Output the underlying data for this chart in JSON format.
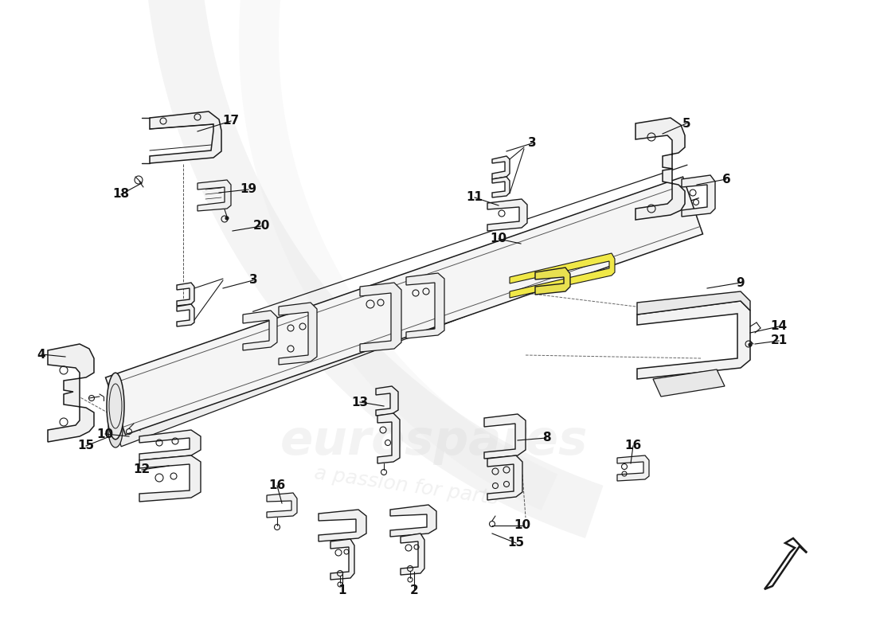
{
  "bg": "#ffffff",
  "lc": "#1a1a1a",
  "lw": 1.0,
  "watermark_color": "#c8c8c8",
  "sweep_color": "#d8d8d8",
  "yellow": "#e8e050",
  "labels": [
    [
      430,
      718,
      430,
      742,
      "1"
    ],
    [
      520,
      718,
      520,
      742,
      "2"
    ],
    [
      280,
      362,
      318,
      352,
      "3"
    ],
    [
      636,
      190,
      668,
      180,
      "3"
    ],
    [
      82,
      448,
      52,
      445,
      "4"
    ],
    [
      832,
      168,
      862,
      155,
      "5"
    ],
    [
      875,
      232,
      912,
      225,
      "6"
    ],
    [
      650,
      553,
      686,
      550,
      "8"
    ],
    [
      888,
      362,
      930,
      355,
      "9"
    ],
    [
      162,
      548,
      132,
      545,
      "10"
    ],
    [
      654,
      306,
      626,
      300,
      "10"
    ],
    [
      618,
      660,
      656,
      660,
      "10"
    ],
    [
      626,
      258,
      596,
      248,
      "11"
    ],
    [
      212,
      585,
      178,
      590,
      "12"
    ],
    [
      482,
      510,
      452,
      505,
      "13"
    ],
    [
      942,
      418,
      978,
      410,
      "14"
    ],
    [
      138,
      548,
      108,
      560,
      "15"
    ],
    [
      618,
      670,
      648,
      682,
      "15"
    ],
    [
      354,
      632,
      348,
      610,
      "16"
    ],
    [
      792,
      582,
      795,
      560,
      "16"
    ],
    [
      248,
      165,
      290,
      152,
      "17"
    ],
    [
      178,
      230,
      152,
      244,
      "18"
    ],
    [
      275,
      242,
      312,
      238,
      "19"
    ],
    [
      292,
      290,
      328,
      284,
      "20"
    ],
    [
      948,
      432,
      978,
      428,
      "21"
    ]
  ]
}
